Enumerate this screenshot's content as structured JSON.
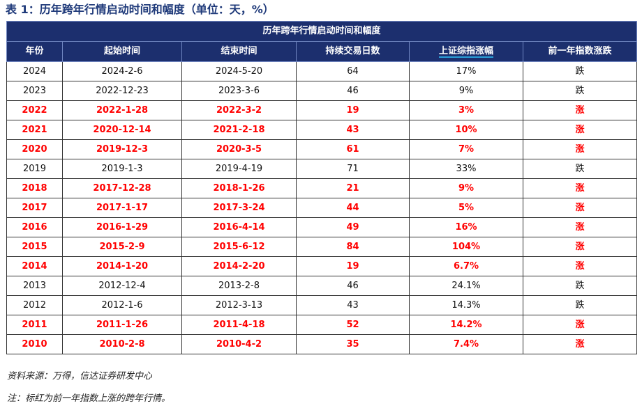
{
  "title": "表 1：历年跨年行情启动时间和幅度（单位：天，%）",
  "table": {
    "banner": "历年跨年行情启动时间和幅度",
    "headers": [
      "年份",
      "起始时间",
      "结束时间",
      "持续交易日数",
      "上证综指涨幅",
      "前一年指数涨跌"
    ],
    "rows": [
      [
        "2024",
        "2024-2-6",
        "2024-5-20",
        "64",
        "17%",
        "跌"
      ],
      [
        "2023",
        "2022-12-23",
        "2023-3-6",
        "46",
        "9%",
        "跌"
      ],
      [
        "2022",
        "2022-1-28",
        "2022-3-2",
        "19",
        "3%",
        "涨"
      ],
      [
        "2021",
        "2020-12-14",
        "2021-2-18",
        "43",
        "10%",
        "涨"
      ],
      [
        "2020",
        "2019-12-3",
        "2020-3-5",
        "61",
        "7%",
        "涨"
      ],
      [
        "2019",
        "2019-1-3",
        "2019-4-19",
        "71",
        "33%",
        "跌"
      ],
      [
        "2018",
        "2017-12-28",
        "2018-1-26",
        "21",
        "9%",
        "涨"
      ],
      [
        "2017",
        "2017-1-17",
        "2017-3-24",
        "44",
        "5%",
        "涨"
      ],
      [
        "2016",
        "2016-1-29",
        "2016-4-14",
        "49",
        "16%",
        "涨"
      ],
      [
        "2015",
        "2015-2-9",
        "2015-6-12",
        "84",
        "104%",
        "涨"
      ],
      [
        "2014",
        "2014-1-20",
        "2014-2-20",
        "19",
        "6.7%",
        "涨"
      ],
      [
        "2013",
        "2012-12-4",
        "2013-2-8",
        "46",
        "24.1%",
        "跌"
      ],
      [
        "2012",
        "2012-1-6",
        "2012-3-13",
        "43",
        "14.3%",
        "跌"
      ],
      [
        "2011",
        "2011-1-26",
        "2011-4-18",
        "52",
        "14.2%",
        "涨"
      ],
      [
        "2010",
        "2010-2-8",
        "2010-4-2",
        "35",
        "7.4%",
        "涨"
      ]
    ]
  },
  "source": "资料来源：万得，信达证券研发中心",
  "note": "注：标红为前一年指数上涨的跨年行情。",
  "colors": {
    "header": "#1c2f6e",
    "highlight": "#ff0000"
  }
}
